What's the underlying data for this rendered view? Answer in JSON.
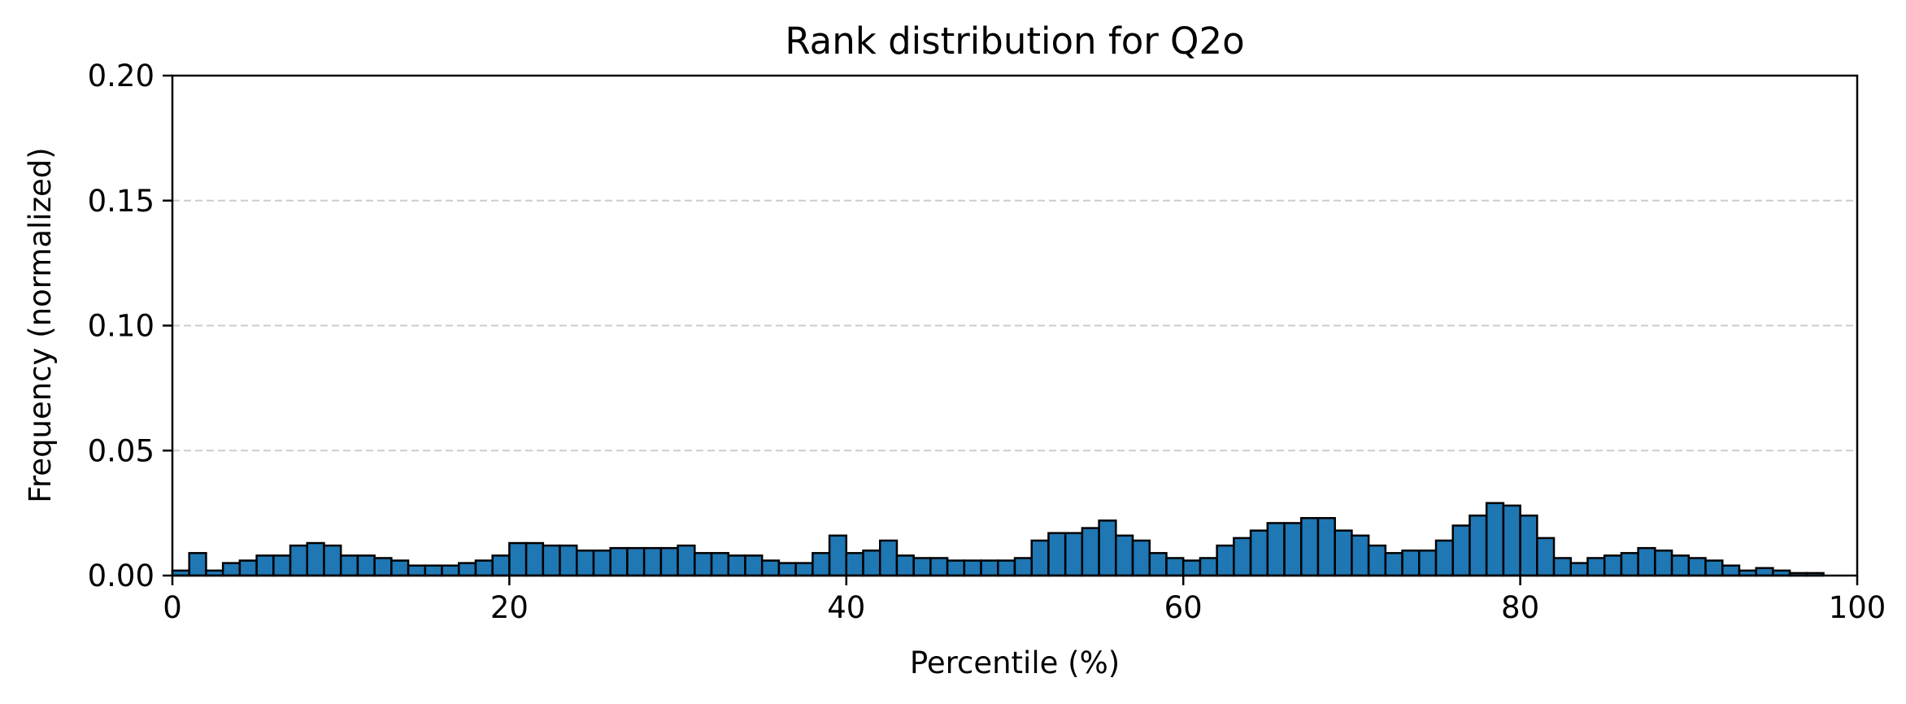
{
  "chart_data": {
    "type": "bar",
    "title": "Rank distribution for Q2o",
    "xlabel": "Percentile (%)",
    "ylabel": "Frequency (normalized)",
    "xlim": [
      0,
      100
    ],
    "ylim": [
      0,
      0.2
    ],
    "x_ticks": [
      0,
      20,
      40,
      60,
      80,
      100
    ],
    "x_tick_labels": [
      "0",
      "20",
      "40",
      "60",
      "80",
      "100"
    ],
    "y_ticks": [
      0,
      0.05,
      0.1,
      0.15,
      0.2
    ],
    "y_tick_labels": [
      "0.00",
      "0.05",
      "0.10",
      "0.15",
      "0.20"
    ],
    "grid": "horizontal dashed at 0.05, 0.10, 0.15",
    "bar_color": "#1f77b4",
    "edge_color": "#000000",
    "bin_width": 1,
    "bin_starts": [
      0,
      1,
      2,
      3,
      4,
      5,
      6,
      7,
      8,
      9,
      10,
      11,
      12,
      13,
      14,
      15,
      16,
      17,
      18,
      19,
      20,
      21,
      22,
      23,
      24,
      25,
      26,
      27,
      28,
      29,
      30,
      31,
      32,
      33,
      34,
      35,
      36,
      37,
      38,
      39,
      40,
      41,
      42,
      43,
      44,
      45,
      46,
      47,
      48,
      49,
      50,
      51,
      52,
      53,
      54,
      55,
      56,
      57,
      58,
      59,
      60,
      61,
      62,
      63,
      64,
      65,
      66,
      67,
      68,
      69,
      70,
      71,
      72,
      73,
      74,
      75,
      76,
      77,
      78,
      79,
      80,
      81,
      82,
      83,
      84,
      85,
      86,
      87,
      88,
      89,
      90,
      91,
      92,
      93,
      94,
      95,
      96,
      97,
      98,
      99
    ],
    "values": [
      0.002,
      0.009,
      0.002,
      0.005,
      0.006,
      0.008,
      0.008,
      0.012,
      0.013,
      0.012,
      0.008,
      0.008,
      0.007,
      0.006,
      0.004,
      0.004,
      0.004,
      0.005,
      0.006,
      0.008,
      0.013,
      0.013,
      0.012,
      0.012,
      0.01,
      0.01,
      0.011,
      0.011,
      0.011,
      0.011,
      0.012,
      0.009,
      0.009,
      0.008,
      0.008,
      0.006,
      0.005,
      0.005,
      0.009,
      0.016,
      0.009,
      0.01,
      0.014,
      0.008,
      0.007,
      0.007,
      0.006,
      0.006,
      0.006,
      0.006,
      0.007,
      0.014,
      0.017,
      0.017,
      0.019,
      0.022,
      0.016,
      0.014,
      0.009,
      0.007,
      0.006,
      0.007,
      0.012,
      0.015,
      0.018,
      0.021,
      0.021,
      0.023,
      0.023,
      0.018,
      0.016,
      0.012,
      0.009,
      0.01,
      0.01,
      0.014,
      0.02,
      0.024,
      0.029,
      0.028,
      0.024,
      0.015,
      0.007,
      0.005,
      0.007,
      0.008,
      0.009,
      0.011,
      0.01,
      0.008,
      0.007,
      0.006,
      0.004,
      0.002,
      0.003,
      0.002,
      0.001,
      0.001,
      0.0,
      0.0
    ]
  }
}
